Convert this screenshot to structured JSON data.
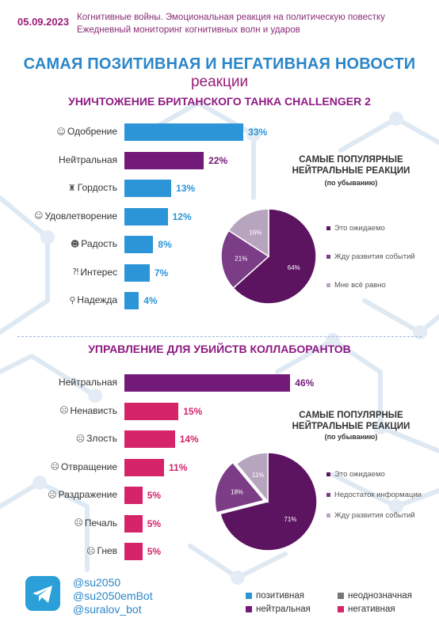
{
  "header": {
    "date": "05.09.2023",
    "line1": "Когнитивные войны. Эмоциональная реакция на политическую повестку",
    "line2": "Ежедневный мониторинг когнитивных волн и ударов"
  },
  "title": {
    "main": "САМАЯ ПОЗИТИВНАЯ И НЕГАТИВНАЯ НОВОСТИ",
    "sub": "реакции"
  },
  "colors": {
    "positive": "#2b95d8",
    "neutral": "#72197a",
    "ambiguous": "#777777",
    "negative": "#d6246a",
    "pie_light": "#b7a4be",
    "pie_mid": "#7b3d86",
    "pie_dark": "#5c1460"
  },
  "chart_data": [
    {
      "type": "bar",
      "title": "УНИЧТОЖЕНИЕ БРИТАНСКОГО ТАНКА CHALLENGER 2",
      "categories": [
        "Одобрение",
        "Нейтральная",
        "Гордость",
        "Удовлетворение",
        "Радость",
        "Интерес",
        "Надежда"
      ],
      "icons": [
        "thumbs-up-icon",
        "",
        "trophy-icon",
        "smile-icon",
        "grin-icon",
        "question-icon",
        "hope-icon"
      ],
      "icon_glyphs": [
        "☺",
        "",
        "♜",
        "☺",
        "☻",
        "⁈",
        "⚲"
      ],
      "values": [
        33,
        22,
        13,
        12,
        8,
        7,
        4
      ],
      "labels": [
        "33%",
        "22%",
        "13%",
        "12%",
        "8%",
        "7%",
        "4%"
      ],
      "sentiment": [
        "positive",
        "neutral",
        "positive",
        "positive",
        "positive",
        "positive",
        "positive"
      ]
    },
    {
      "type": "pie",
      "title": "САМЫЕ ПОПУЛЯРНЫЕ НЕЙТРАЛЬНЫЕ РЕАКЦИИ",
      "subtitle": "(по убыванию)",
      "slices": [
        {
          "name": "Это ожидаемо",
          "value": 64,
          "label": "64%"
        },
        {
          "name": "Жду развития событий",
          "value": 21,
          "label": "21%"
        },
        {
          "name": "Мне всё равно",
          "value": 16,
          "label": "16%"
        }
      ]
    },
    {
      "type": "bar",
      "title": "УПРАВЛЕНИЕ ДЛЯ УБИЙСТВ КОЛЛАБОРАНТОВ",
      "categories": [
        "Нейтральная",
        "Ненависть",
        "Злость",
        "Отвращение",
        "Раздражение",
        "Печаль",
        "Гнев"
      ],
      "icons": [
        "",
        "hate-icon",
        "angry-icon",
        "disgust-icon",
        "annoyed-icon",
        "sad-icon",
        "rage-icon"
      ],
      "icon_glyphs": [
        "",
        "☹",
        "☹",
        "☹",
        "☹",
        "☹",
        "☹"
      ],
      "values": [
        46,
        15,
        14,
        11,
        5,
        5,
        5
      ],
      "labels": [
        "46%",
        "15%",
        "14%",
        "11%",
        "5%",
        "5%",
        "5%"
      ],
      "sentiment": [
        "neutral",
        "negative",
        "negative",
        "negative",
        "negative",
        "negative",
        "negative"
      ]
    },
    {
      "type": "pie",
      "title": "САМЫЕ ПОПУЛЯРНЫЕ НЕЙТРАЛЬНЫЕ РЕАКЦИИ",
      "subtitle": "(по убыванию)",
      "slices": [
        {
          "name": "Это ожидаемо",
          "value": 71,
          "label": "71%"
        },
        {
          "name": "Недостаток информации",
          "value": 18,
          "label": "18%"
        },
        {
          "name": "Жду развития событий",
          "value": 11,
          "label": "11%"
        }
      ]
    }
  ],
  "footer": {
    "handles": [
      "@su2050",
      "@su2050emBot",
      "@suralov_bot"
    ],
    "legend": [
      {
        "label": "позитивная",
        "sentiment": "positive"
      },
      {
        "label": "неоднозначная",
        "sentiment": "ambiguous"
      },
      {
        "label": "нейтральная",
        "sentiment": "neutral"
      },
      {
        "label": "негативная",
        "sentiment": "negative"
      }
    ]
  }
}
